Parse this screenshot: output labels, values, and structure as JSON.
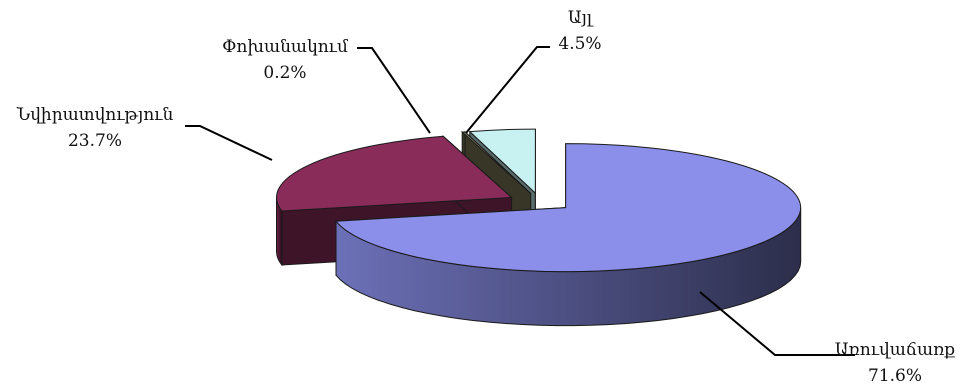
{
  "chart_data": {
    "type": "pie",
    "title": "",
    "series": [
      {
        "name": "Առուվաճառք",
        "value": 71.6,
        "label": "71.6%",
        "color": "#8b8fea"
      },
      {
        "name": "Նվիրատվություն",
        "value": 23.7,
        "label": "23.7%",
        "color": "#8a2c5a"
      },
      {
        "name": "Փոխանակում",
        "value": 0.2,
        "label": "0.2%",
        "color": "#7d7a57"
      },
      {
        "name": "Այլ",
        "value": 4.5,
        "label": "4.5%",
        "color": "#c8f2f2"
      }
    ],
    "exploded": true,
    "three_d": true,
    "legend": "none"
  }
}
